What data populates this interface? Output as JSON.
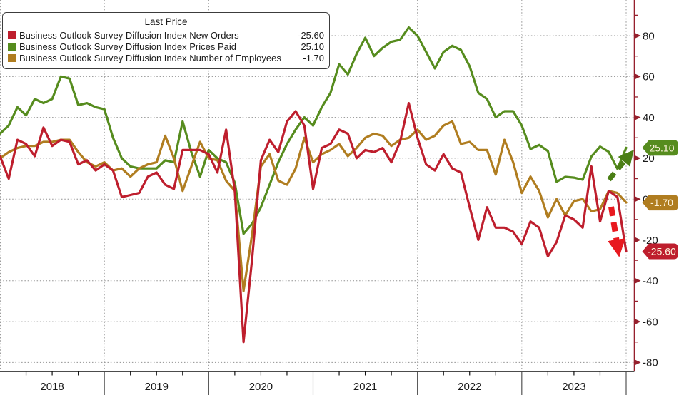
{
  "legend": {
    "title": "Last Price",
    "rows": [
      {
        "label": "Business Outlook Survey Diffusion Index New Orders",
        "value": "-25.60",
        "color": "#be1e2d"
      },
      {
        "label": "Business Outlook Survey Diffusion Index Prices Paid",
        "value": "25.10",
        "color": "#568c1e"
      },
      {
        "label": "Business Outlook Survey Diffusion Index Number of Employees",
        "value": "-1.70",
        "color": "#b07d20"
      }
    ]
  },
  "chart_data": {
    "type": "line",
    "x_unit": "month",
    "x_range": "Dec 2017 - Dec 2023",
    "year_labels": [
      "2018",
      "2019",
      "2020",
      "2021",
      "2022",
      "2023"
    ],
    "ylim": [
      -88,
      97
    ],
    "grid": true,
    "y_ticks_major": [
      80,
      60,
      40,
      20,
      0,
      -20,
      -40,
      -60,
      -80
    ],
    "y_ticks_minor": [
      90,
      70,
      50,
      30,
      10,
      -10,
      -30,
      -50,
      -70
    ],
    "series": [
      {
        "key": "prices_paid",
        "name": "Business Outlook Survey Diffusion Index Prices Paid",
        "color": "#568c1e",
        "last_price": "25.10",
        "values": [
          32,
          36,
          45,
          41,
          49,
          47,
          49,
          60,
          59,
          46,
          47,
          45,
          44,
          30,
          20,
          16,
          15,
          15,
          15,
          19,
          18,
          38,
          23,
          11,
          24,
          20,
          18,
          8,
          -17,
          -12,
          -4,
          7,
          18,
          27,
          34,
          40,
          36,
          45,
          52,
          66,
          61,
          71,
          79,
          70,
          74,
          77,
          78,
          84,
          80,
          72,
          64,
          72,
          75,
          73,
          65,
          52,
          49,
          40,
          43,
          43,
          36,
          24.5,
          26.5,
          23.5,
          8.5,
          10.9,
          10.5,
          9.5,
          20.8,
          25.7,
          23.1,
          14.8,
          25.1
        ]
      },
      {
        "key": "employees",
        "name": "Business Outlook Survey Diffusion Index Number of Employees",
        "color": "#b07d20",
        "last_price": "-1.70",
        "values": [
          20,
          23,
          25,
          26,
          26,
          28,
          28,
          29,
          29,
          23,
          18,
          16,
          18,
          14,
          15,
          11,
          15,
          17,
          18,
          31,
          20,
          4,
          16,
          28,
          20,
          19,
          9,
          4,
          -45,
          -17,
          16,
          22,
          9,
          7,
          15,
          30,
          18,
          22,
          24,
          27,
          21,
          25,
          30,
          32,
          31,
          26,
          29,
          30,
          34,
          29,
          31,
          36,
          38,
          27,
          28,
          24,
          24,
          12,
          29,
          18,
          3,
          11,
          4,
          -9,
          0,
          -8,
          -1,
          0,
          -6,
          -5,
          4,
          3,
          -1.7
        ]
      },
      {
        "key": "new_orders",
        "name": "Business Outlook Survey Diffusion Index New Orders",
        "color": "#be1e2d",
        "last_price": "-25.60",
        "values": [
          21,
          10,
          29,
          27,
          21,
          35,
          26,
          29,
          28,
          17,
          19,
          14,
          17,
          14,
          1,
          2,
          3,
          11,
          13,
          7,
          5,
          24,
          24,
          24,
          22,
          13,
          34,
          4,
          -70,
          -29,
          19,
          29,
          23,
          38,
          43,
          36,
          5,
          25,
          27,
          34,
          32,
          20,
          24,
          23,
          25,
          18,
          28,
          47,
          30,
          17,
          14,
          22,
          15,
          13,
          -4,
          -20,
          -4,
          -14,
          -14,
          -16,
          -22,
          -11,
          -14,
          -28,
          -21,
          -8,
          -10,
          -14,
          16,
          -11,
          4,
          1,
          -25.6
        ]
      }
    ],
    "annotations": [
      {
        "name": "green-up-arrow",
        "shape": "dashed-arrow",
        "direction": "up-right",
        "color": "#4a7e15"
      },
      {
        "name": "red-down-arrow",
        "shape": "dashed-arrow",
        "direction": "down",
        "color": "#e8191f"
      }
    ],
    "colors": {
      "axis": "#96202d",
      "bottom_axis": "#111111",
      "grid": "#909090",
      "text": "#1a1a1a",
      "badge_text": "#fdf3dc"
    }
  }
}
